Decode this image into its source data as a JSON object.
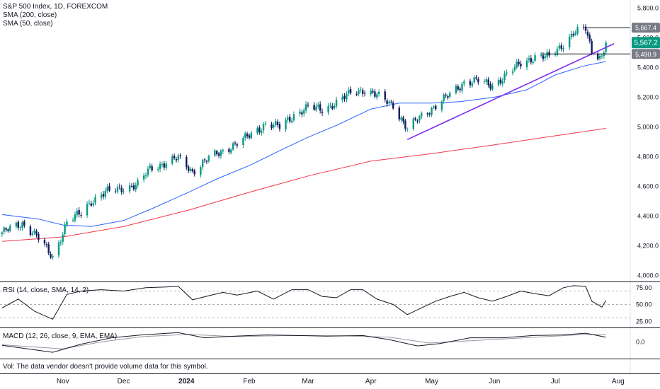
{
  "legend": {
    "symbol": "S&P 500 Index, 1D, FOREXCOM",
    "sma200": "SMA (200, close)",
    "sma50": "SMA (50, close)",
    "rsi": "RSI (14, close, SMA, 14, 2)",
    "macd": "MACD (12, 26, close, 9, EMA, EMA)"
  },
  "volume_note": "Vol: The data vendor doesn't provide volume data for this symbol.",
  "colors": {
    "up": "#089981",
    "down": "#131a5e",
    "sma200": "#f23645",
    "sma50": "#2962ff",
    "trendline": "#7b2cf0",
    "price_label": "#089981",
    "level_label": "#787b86",
    "rsi": "#131722",
    "macd": "#131722",
    "signal": "#9598a1"
  },
  "chart_data": [
    {
      "type": "candlestick",
      "title": "S&P 500 Index, 1D, FOREXCOM",
      "y_ticks": [
        "5,800.0",
        "5,600.0",
        "5,400.0",
        "5,200.0",
        "5,000.0",
        "4,800.0",
        "4,600.0",
        "4,400.0",
        "4,200.0",
        "4,000.0"
      ],
      "ylim": [
        3960,
        5830
      ],
      "x_ticks": [
        "Nov",
        "Dec",
        "2024",
        "Feb",
        "Mar",
        "Apr",
        "May",
        "Jun",
        "Jul",
        "Aug"
      ],
      "close_points": [
        [
          "2023-10-02",
          4290
        ],
        [
          "2023-10-12",
          4350
        ],
        [
          "2023-10-19",
          4270
        ],
        [
          "2023-10-27",
          4120
        ],
        [
          "2023-11-03",
          4360
        ],
        [
          "2023-11-10",
          4420
        ],
        [
          "2023-11-15",
          4500
        ],
        [
          "2023-11-22",
          4560
        ],
        [
          "2023-12-01",
          4590
        ],
        [
          "2023-12-08",
          4610
        ],
        [
          "2023-12-14",
          4720
        ],
        [
          "2023-12-22",
          4760
        ],
        [
          "2023-12-28",
          4790
        ],
        [
          "2024-01-04",
          4700
        ],
        [
          "2024-01-12",
          4790
        ],
        [
          "2024-01-19",
          4840
        ],
        [
          "2024-01-26",
          4890
        ],
        [
          "2024-02-02",
          4950
        ],
        [
          "2024-02-09",
          5020
        ],
        [
          "2024-02-16",
          5000
        ],
        [
          "2024-02-23",
          5080
        ],
        [
          "2024-03-01",
          5130
        ],
        [
          "2024-03-08",
          5120
        ],
        [
          "2024-03-15",
          5160
        ],
        [
          "2024-03-22",
          5230
        ],
        [
          "2024-03-28",
          5250
        ],
        [
          "2024-04-04",
          5210
        ],
        [
          "2024-04-12",
          5150
        ],
        [
          "2024-04-19",
          4980
        ],
        [
          "2024-04-26",
          5080
        ],
        [
          "2024-05-03",
          5140
        ],
        [
          "2024-05-10",
          5220
        ],
        [
          "2024-05-17",
          5300
        ],
        [
          "2024-05-24",
          5310
        ],
        [
          "2024-05-31",
          5280
        ],
        [
          "2024-06-07",
          5350
        ],
        [
          "2024-06-14",
          5430
        ],
        [
          "2024-06-21",
          5470
        ],
        [
          "2024-06-28",
          5470
        ],
        [
          "2024-07-05",
          5560
        ],
        [
          "2024-07-10",
          5630
        ],
        [
          "2024-07-16",
          5660
        ],
        [
          "2024-07-19",
          5510
        ],
        [
          "2024-07-24",
          5470
        ],
        [
          "2024-07-26",
          5567
        ]
      ],
      "sma200": [
        [
          "2023-10-02",
          4230
        ],
        [
          "2023-11-01",
          4260
        ],
        [
          "2023-12-01",
          4330
        ],
        [
          "2024-01-02",
          4440
        ],
        [
          "2024-02-01",
          4560
        ],
        [
          "2024-03-01",
          4670
        ],
        [
          "2024-04-01",
          4770
        ],
        [
          "2024-05-01",
          4820
        ],
        [
          "2024-06-01",
          4880
        ],
        [
          "2024-07-01",
          4940
        ],
        [
          "2024-07-26",
          4990
        ]
      ],
      "sma50": [
        [
          "2023-10-02",
          4410
        ],
        [
          "2023-10-20",
          4380
        ],
        [
          "2023-11-01",
          4340
        ],
        [
          "2023-11-15",
          4330
        ],
        [
          "2023-12-01",
          4370
        ],
        [
          "2023-12-15",
          4450
        ],
        [
          "2024-01-02",
          4560
        ],
        [
          "2024-01-16",
          4650
        ],
        [
          "2024-02-01",
          4740
        ],
        [
          "2024-02-16",
          4840
        ],
        [
          "2024-03-01",
          4930
        ],
        [
          "2024-03-15",
          5010
        ],
        [
          "2024-04-01",
          5120
        ],
        [
          "2024-04-15",
          5160
        ],
        [
          "2024-05-01",
          5160
        ],
        [
          "2024-05-15",
          5170
        ],
        [
          "2024-06-01",
          5200
        ],
        [
          "2024-06-17",
          5250
        ],
        [
          "2024-07-01",
          5350
        ],
        [
          "2024-07-15",
          5410
        ],
        [
          "2024-07-26",
          5440
        ]
      ],
      "trendline": [
        [
          "2024-04-19",
          4915
        ],
        [
          "2024-07-30",
          5560
        ]
      ],
      "levels": [
        {
          "label": "5,667.4",
          "value": 5667.4,
          "from": "2024-07-16"
        },
        {
          "label": "5,490.9",
          "value": 5490.9,
          "from": "2024-06-24"
        }
      ],
      "last_price": {
        "label": "5,567.2",
        "value": 5567.2
      }
    },
    {
      "type": "line",
      "title": "RSI (14, close, SMA, 14, 2)",
      "y_ticks": [
        "75.00",
        "50.00",
        "25.00"
      ],
      "ylim": [
        20,
        80
      ],
      "bands": [
        70,
        50,
        30
      ],
      "points": [
        [
          "2023-10-02",
          45
        ],
        [
          "2023-10-10",
          58
        ],
        [
          "2023-10-18",
          40
        ],
        [
          "2023-10-27",
          28
        ],
        [
          "2023-11-03",
          65
        ],
        [
          "2023-11-10",
          70
        ],
        [
          "2023-11-20",
          72
        ],
        [
          "2023-12-01",
          70
        ],
        [
          "2023-12-12",
          75
        ],
        [
          "2023-12-22",
          76
        ],
        [
          "2023-12-28",
          77
        ],
        [
          "2024-01-04",
          57
        ],
        [
          "2024-01-12",
          63
        ],
        [
          "2024-01-19",
          68
        ],
        [
          "2024-01-26",
          64
        ],
        [
          "2024-02-05",
          70
        ],
        [
          "2024-02-13",
          58
        ],
        [
          "2024-02-22",
          72
        ],
        [
          "2024-03-01",
          72
        ],
        [
          "2024-03-08",
          62
        ],
        [
          "2024-03-15",
          60
        ],
        [
          "2024-03-22",
          72
        ],
        [
          "2024-03-28",
          72
        ],
        [
          "2024-04-04",
          58
        ],
        [
          "2024-04-12",
          50
        ],
        [
          "2024-04-19",
          35
        ],
        [
          "2024-04-26",
          45
        ],
        [
          "2024-05-03",
          55
        ],
        [
          "2024-05-10",
          62
        ],
        [
          "2024-05-17",
          68
        ],
        [
          "2024-05-24",
          60
        ],
        [
          "2024-05-31",
          55
        ],
        [
          "2024-06-07",
          62
        ],
        [
          "2024-06-14",
          70
        ],
        [
          "2024-06-21",
          66
        ],
        [
          "2024-06-28",
          63
        ],
        [
          "2024-07-05",
          75
        ],
        [
          "2024-07-10",
          78
        ],
        [
          "2024-07-16",
          77
        ],
        [
          "2024-07-19",
          55
        ],
        [
          "2024-07-24",
          46
        ],
        [
          "2024-07-26",
          56
        ]
      ]
    },
    {
      "type": "line",
      "title": "MACD (12, 26, close, 9, EMA, EMA)",
      "y_ticks": [
        "0.0"
      ],
      "ylim": [
        -120,
        100
      ],
      "macd": [
        [
          "2023-10-02",
          -30
        ],
        [
          "2023-10-27",
          -90
        ],
        [
          "2023-11-10",
          -20
        ],
        [
          "2023-11-25",
          35
        ],
        [
          "2023-12-10",
          60
        ],
        [
          "2023-12-28",
          80
        ],
        [
          "2024-01-10",
          35
        ],
        [
          "2024-01-25",
          50
        ],
        [
          "2024-02-10",
          60
        ],
        [
          "2024-02-25",
          55
        ],
        [
          "2024-03-10",
          50
        ],
        [
          "2024-03-28",
          55
        ],
        [
          "2024-04-10",
          20
        ],
        [
          "2024-04-24",
          -35
        ],
        [
          "2024-05-05",
          -15
        ],
        [
          "2024-05-20",
          35
        ],
        [
          "2024-06-05",
          35
        ],
        [
          "2024-06-20",
          55
        ],
        [
          "2024-07-05",
          60
        ],
        [
          "2024-07-16",
          75
        ],
        [
          "2024-07-26",
          40
        ]
      ],
      "signal": [
        [
          "2023-10-02",
          -25
        ],
        [
          "2023-11-01",
          -60
        ],
        [
          "2023-11-20",
          0
        ],
        [
          "2023-12-10",
          45
        ],
        [
          "2024-01-02",
          65
        ],
        [
          "2024-01-25",
          45
        ],
        [
          "2024-02-20",
          55
        ],
        [
          "2024-03-20",
          52
        ],
        [
          "2024-04-10",
          40
        ],
        [
          "2024-04-30",
          -10
        ],
        [
          "2024-05-20",
          10
        ],
        [
          "2024-06-10",
          30
        ],
        [
          "2024-07-01",
          50
        ],
        [
          "2024-07-16",
          65
        ],
        [
          "2024-07-26",
          60
        ]
      ]
    }
  ]
}
